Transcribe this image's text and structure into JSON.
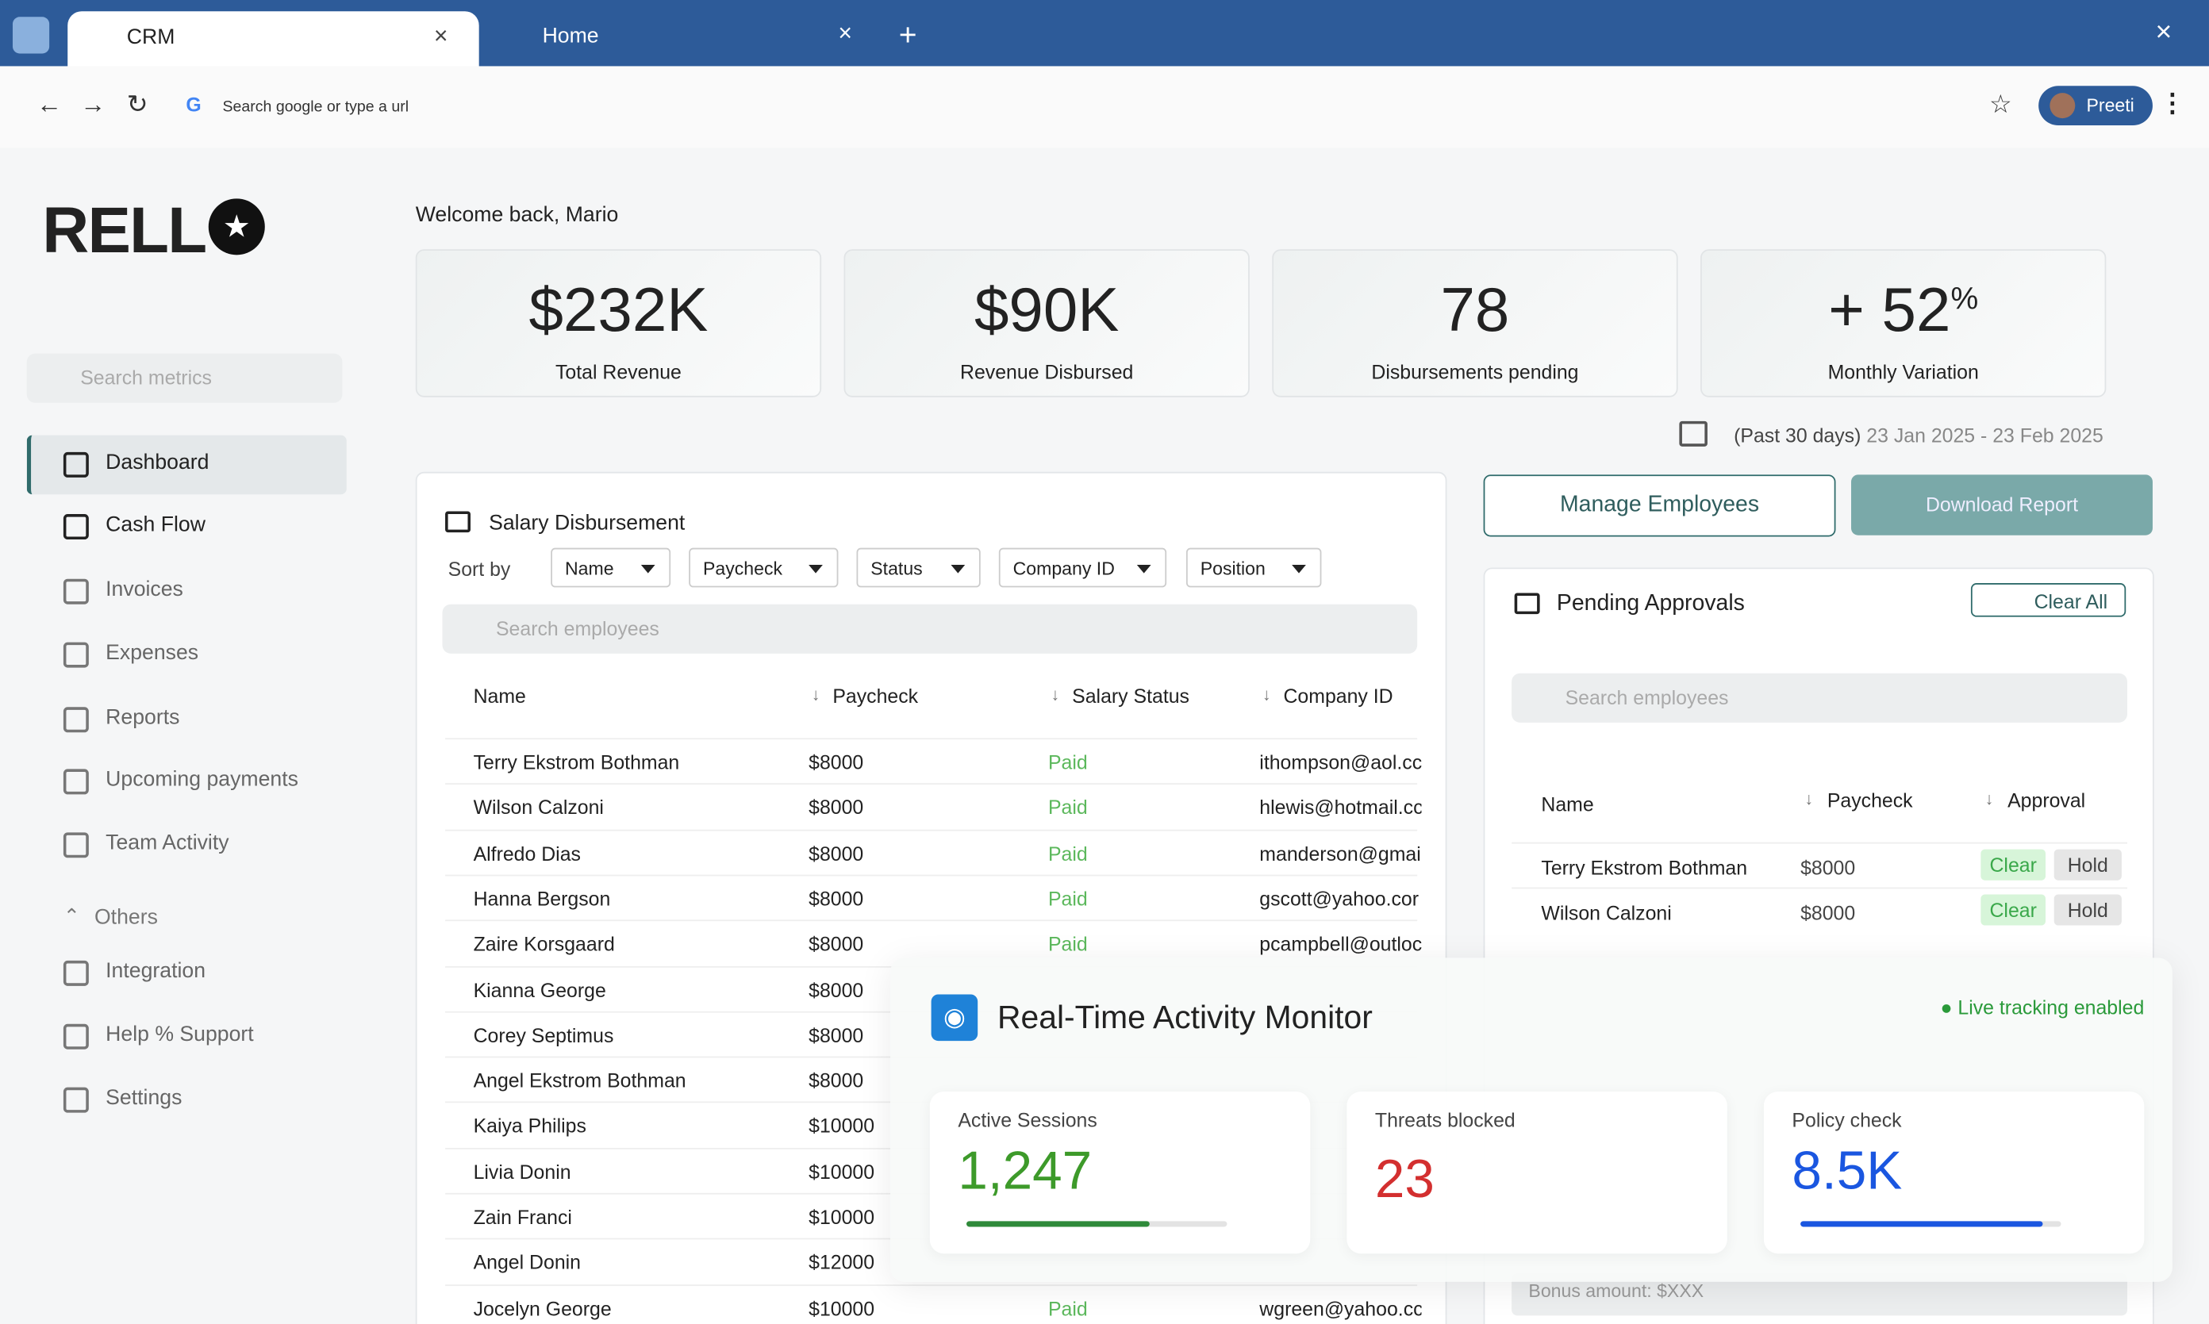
{
  "browser": {
    "tabs": [
      "CRM",
      "Home"
    ],
    "address": "Search google or type a url",
    "profile": "Preeti"
  },
  "sidebar": {
    "logo": "RELL",
    "search": "Search metrics",
    "nav": [
      "Dashboard",
      "Cash Flow",
      "Invoices",
      "Expenses",
      "Reports",
      "Upcoming payments",
      "Team Activity"
    ],
    "section": "Others",
    "others": [
      "Integration",
      "Help % Support",
      "Settings"
    ]
  },
  "header": {
    "welcome": "Welcome back, Mario"
  },
  "kpis": [
    {
      "value": "$232K",
      "label": "Total Revenue"
    },
    {
      "value": "$90K",
      "label": "Revenue Disbursed"
    },
    {
      "value": "78",
      "label": "Disbursements pending"
    },
    {
      "value": "+ 52",
      "suffix": "%",
      "label": "Monthly Variation"
    }
  ],
  "date_range": {
    "label": "(Past 30 days)",
    "range": "23 Jan 2025 - 23 Feb 2025"
  },
  "salary": {
    "title": "Salary Disbursement",
    "sort_label": "Sort by",
    "filters": [
      "Name",
      "Paycheck",
      "Status",
      "Company ID",
      "Position"
    ],
    "search": "Search employees",
    "columns": [
      "Name",
      "Paycheck",
      "Salary Status",
      "Company ID"
    ],
    "rows": [
      [
        "Terry Ekstrom Bothman",
        "$8000",
        "Paid",
        "ithompson@aol.cc"
      ],
      [
        "Wilson Calzoni",
        "$8000",
        "Paid",
        "hlewis@hotmail.cc"
      ],
      [
        "Alfredo Dias",
        "$8000",
        "Paid",
        "manderson@gmai"
      ],
      [
        "Hanna Bergson",
        "$8000",
        "Paid",
        "gscott@yahoo.cor"
      ],
      [
        "Zaire Korsgaard",
        "$8000",
        "Paid",
        "pcampbell@outloc"
      ],
      [
        "Kianna George",
        "$8000"
      ],
      [
        "Corey Septimus",
        "$8000"
      ],
      [
        "Angel Ekstrom Bothman",
        "$8000"
      ],
      [
        "Kaiya Philips",
        "$10000"
      ],
      [
        "Livia Donin",
        "$10000"
      ],
      [
        "Zain Franci",
        "$10000"
      ],
      [
        "Angel Donin",
        "$12000"
      ],
      [
        "Jocelyn George",
        "$10000",
        "Paid",
        "wgreen@yahoo.cc"
      ]
    ]
  },
  "actions": {
    "manage": "Manage Employees",
    "download": "Download Report"
  },
  "approvals": {
    "title": "Pending Approvals",
    "clear_all": "Clear All",
    "search": "Search employees",
    "columns": [
      "Name",
      "Paycheck",
      "Approval"
    ],
    "rows": [
      [
        "Terry Ekstrom Bothman",
        "$8000",
        "Clear",
        "Hold"
      ],
      [
        "Wilson Calzoni",
        "$8000",
        "Clear",
        "Hold"
      ]
    ],
    "footer": "Bonus amount: $XXX"
  },
  "monitor": {
    "title": "Real-Time Activity Monitor",
    "status": "Live tracking enabled",
    "metrics": [
      {
        "label": "Active Sessions",
        "value": "1,247"
      },
      {
        "label": "Threats blocked",
        "value": "23"
      },
      {
        "label": "Policy check",
        "value": "8.5K"
      }
    ]
  }
}
